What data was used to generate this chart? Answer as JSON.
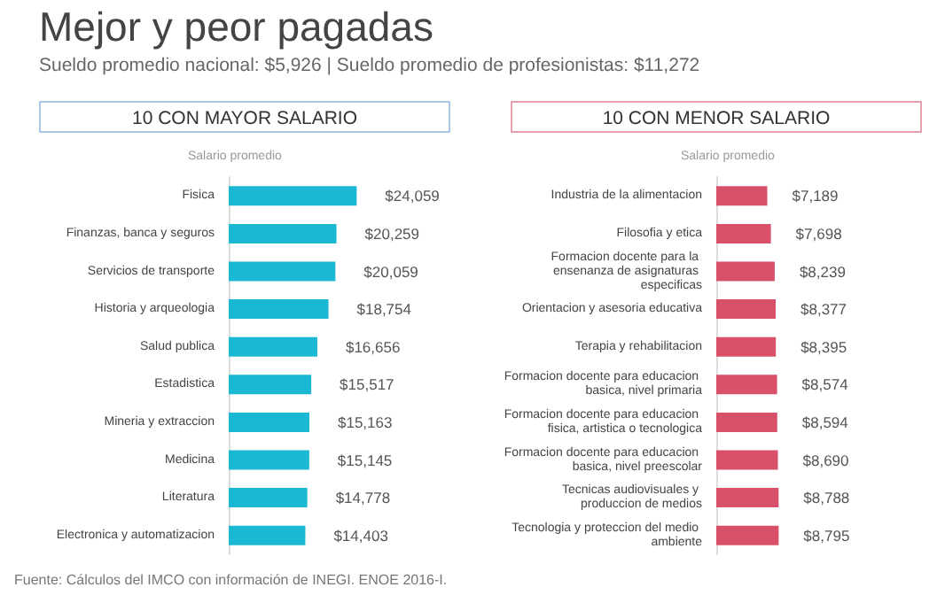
{
  "chart_data": [
    {
      "type": "bar",
      "orientation": "horizontal",
      "title": "Mejor y peor pagadas",
      "subtitle": "Sueldo promedio nacional: $5,926   |   Sueldo promedio de profesionistas: $11,272",
      "xlabel": "Salario promedio",
      "annotations": [
        "10 CON MAYOR SALARIO",
        "Fuente: Cálculos del IMCO con información de INEGI. ENOE 2016-I."
      ],
      "categories": [
        "Fisica",
        "Finanzas, banca y seguros",
        "Servicios de transporte",
        "Historia y arqueologia",
        "Salud publica",
        "Estadistica",
        "Mineria y extraccion",
        "Medicina",
        "Literatura",
        "Electronica y automatizacion"
      ],
      "values": [
        24059,
        20259,
        20059,
        18754,
        16656,
        15517,
        15163,
        15145,
        14778,
        14403
      ],
      "value_labels": [
        "$24,059",
        "$20,259",
        "$20,059",
        "$18,754",
        "$16,656",
        "$15,517",
        "$15,163",
        "$15,145",
        "$14,778",
        "$14,403"
      ],
      "color": "#1ab8d3",
      "tick_labels": "y"
    },
    {
      "type": "bar",
      "orientation": "horizontal",
      "title": "10 CON MENOR SALARIO",
      "xlabel": "Salario promedio",
      "categories": [
        "Industria de la alimentacion",
        "Filosofia y etica",
        "Formacion docente para la ensenanza de asignaturas especificas",
        "Orientacion y asesoria educativa",
        "Terapia y rehabilitacion",
        "Formacion docente para educacion basica, nivel primaria",
        "Formacion docente para educacion fisica, artistica o tecnologica",
        "Formacion docente para educacion basica, nivel preescolar",
        "Tecnicas audiovisuales y produccion de medios",
        "Tecnologia y proteccion del medio ambiente"
      ],
      "values": [
        7189,
        7698,
        8239,
        8377,
        8395,
        8574,
        8594,
        8690,
        8788,
        8795
      ],
      "value_labels": [
        "$7,189",
        "$7,698",
        "$8,239",
        "$8,377",
        "$8,395",
        "$8,574",
        "$8,594",
        "$8,690",
        "$8,788",
        "$8,795"
      ],
      "color": "#d9506a",
      "tick_labels": "y"
    }
  ]
}
